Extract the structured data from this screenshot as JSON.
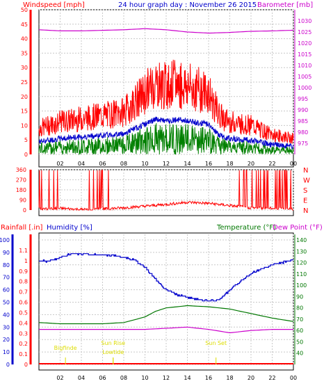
{
  "header": {
    "windspeed_label": "Windspeed [mph]",
    "title": "24 hour graph day : November 26 2015",
    "barometer_label": "Barometer [mb]"
  },
  "panel3": {
    "rainfall_label": "Rainfall [.in]",
    "humidity_label": "Humidity [%]",
    "temperature_label": "Temperature (°F)",
    "dewpoint_label": "Dew Point (°F)"
  },
  "colors": {
    "windspeed": "#ff0000",
    "gust_avg": "#0000cc",
    "wind_low": "#008000",
    "barometer": "#cc00cc",
    "humidity": "#0000cc",
    "temperature": "#007700",
    "dewpoint": "#cc00cc",
    "rainfall": "#ff0000",
    "events": "#dddd00",
    "grid": "#c8c8c8"
  },
  "chart_data": [
    {
      "type": "line",
      "name": "wind-barometer",
      "x_ticks": [
        "02",
        "04",
        "06",
        "08",
        "10",
        "12",
        "14",
        "16",
        "18",
        "20",
        "22",
        "00"
      ],
      "left_axis": {
        "label": "Windspeed [mph]",
        "ylim": [
          0,
          50
        ],
        "ticks": [
          0,
          5,
          10,
          15,
          20,
          25,
          30,
          35,
          40,
          45,
          50
        ]
      },
      "right_axis": {
        "label": "Barometer [mb]",
        "ylim": [
          970,
          1035
        ],
        "ticks": [
          975,
          980,
          985,
          990,
          995,
          1000,
          1005,
          1010,
          1015,
          1020,
          1025,
          1030
        ]
      },
      "series": [
        {
          "name": "Windspeed",
          "hours": [
            0,
            2,
            4,
            6,
            8,
            10,
            11,
            12,
            13,
            14,
            15,
            16,
            17,
            18,
            20,
            22,
            24
          ],
          "values": [
            8,
            10,
            11,
            12,
            13,
            19,
            22,
            21,
            22,
            21,
            20,
            19,
            12,
            10,
            9,
            6,
            5
          ]
        },
        {
          "name": "Barometer",
          "hours": [
            0,
            2,
            4,
            8,
            10,
            12,
            14,
            16,
            18,
            20,
            22,
            24
          ],
          "values": [
            1026,
            1025.5,
            1025.5,
            1026,
            1026.5,
            1026,
            1025,
            1024.5,
            1024.8,
            1025.3,
            1025.5,
            1025.8
          ]
        }
      ]
    },
    {
      "type": "scatter",
      "name": "wind-direction",
      "x_ticks": [
        "02",
        "04",
        "06",
        "08",
        "10",
        "12",
        "14",
        "16",
        "18",
        "20",
        "22",
        "00"
      ],
      "y_ticks": [
        0,
        90,
        180,
        270,
        360
      ],
      "y_labels_right": [
        "N",
        "E",
        "S",
        "W",
        "N"
      ],
      "ylim": [
        0,
        360
      ],
      "series": [
        {
          "name": "Direction",
          "hours": [
            0,
            2,
            4,
            6,
            8,
            10,
            12,
            14,
            16,
            18,
            20,
            22,
            24
          ],
          "values": [
            10,
            15,
            5,
            10,
            20,
            35,
            50,
            70,
            60,
            40,
            20,
            15,
            10
          ]
        }
      ]
    },
    {
      "type": "line",
      "name": "humidity-temperature",
      "x_ticks": [
        "02",
        "04",
        "06",
        "08",
        "10",
        "12",
        "14",
        "16",
        "18",
        "20",
        "22",
        "00"
      ],
      "humidity_axis": {
        "label": "Humidity [%]",
        "ylim": [
          0,
          100
        ],
        "ticks": [
          0,
          10,
          20,
          30,
          40,
          50,
          60,
          70,
          80,
          90,
          100
        ]
      },
      "rainfall_axis": {
        "label": "Rainfall [.in]",
        "ylim": [
          0,
          1.2
        ],
        "ticks": [
          0,
          0.1,
          0.2,
          0.3,
          0.4,
          0.5,
          0.6,
          0.7,
          0.8,
          0.9,
          1,
          1.1
        ]
      },
      "temp_axis": {
        "label": "Temperature (°F)",
        "ylim": [
          30,
          145
        ],
        "ticks": [
          40,
          50,
          60,
          70,
          80,
          90,
          100,
          110,
          120,
          130,
          140
        ]
      },
      "series": [
        {
          "name": "Humidity",
          "hours": [
            0,
            1,
            2,
            3,
            5,
            7,
            8,
            9,
            10,
            11,
            12,
            13,
            14,
            15,
            16,
            17,
            18,
            19,
            20,
            21,
            22,
            23,
            24
          ],
          "values": [
            83,
            83,
            86,
            89,
            88,
            88,
            86,
            84,
            78,
            68,
            60,
            56,
            54,
            52,
            51,
            52,
            60,
            67,
            73,
            77,
            80,
            82,
            84
          ]
        },
        {
          "name": "Temperature",
          "hours": [
            0,
            2,
            4,
            6,
            8,
            10,
            11,
            12,
            14,
            16,
            18,
            20,
            22,
            24
          ],
          "values": [
            67,
            66,
            66,
            66,
            67,
            72,
            77,
            80,
            82,
            81,
            79,
            75,
            71,
            68
          ]
        },
        {
          "name": "Dew Point",
          "hours": [
            0,
            2,
            4,
            6,
            8,
            10,
            12,
            14,
            16,
            18,
            20,
            22,
            24
          ],
          "values": [
            61,
            61,
            61,
            61,
            61,
            61,
            62,
            63,
            61,
            58,
            60,
            61,
            61
          ]
        },
        {
          "name": "Rainfall",
          "hours": [
            0,
            24
          ],
          "values": [
            0,
            0
          ]
        }
      ],
      "events": [
        {
          "label": "Bigfinde",
          "hour": 2.5
        },
        {
          "label": "Sun Rise",
          "hour": 7
        },
        {
          "label": "Lowtide",
          "hour": 7
        },
        {
          "label": "Sun Set",
          "hour": 16.7
        }
      ]
    }
  ]
}
